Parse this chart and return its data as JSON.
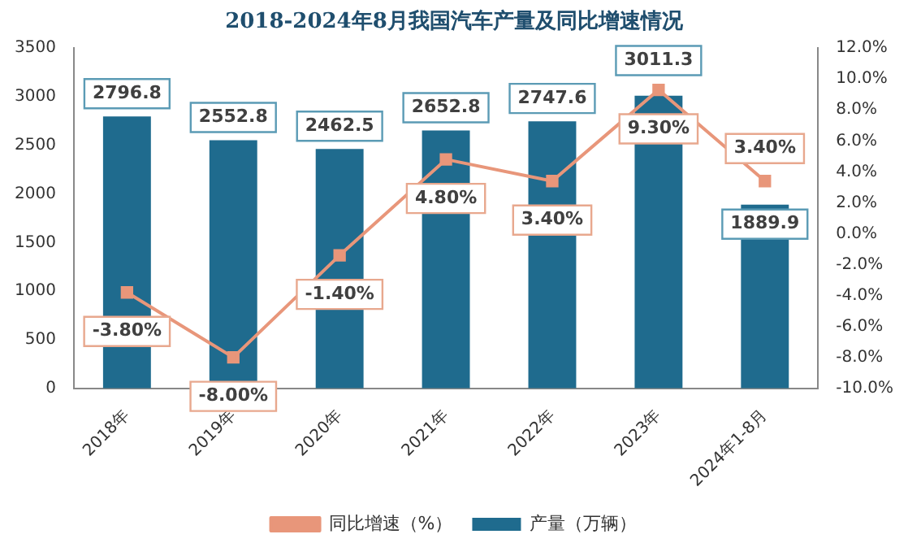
{
  "chart_data": {
    "type": "bar",
    "title": "2018-2024年8月我国汽车产量及同比增速情况",
    "categories": [
      "2018年",
      "2019年",
      "2020年",
      "2021年",
      "2022年",
      "2023年",
      "2024年1-8月"
    ],
    "series": [
      {
        "name": "产量（万辆）",
        "color": "#1f6b8e",
        "values": [
          2796.8,
          2552.8,
          2462.5,
          2652.8,
          2747.6,
          3011.3,
          1889.9
        ],
        "value_labels": [
          "2796.8",
          "2552.8",
          "2462.5",
          "2652.8",
          "2747.6",
          "3011.3",
          "1889.9"
        ]
      },
      {
        "name": "同比增速（%）",
        "type": "line",
        "axis": "y2",
        "color": "#e8967a",
        "marker": "square",
        "values": [
          -3.8,
          -8.0,
          -1.4,
          4.8,
          3.4,
          9.3,
          3.4
        ],
        "value_labels": [
          "-3.80%",
          "-8.00%",
          "-1.40%",
          "4.80%",
          "3.40%",
          "9.30%",
          "3.40%"
        ]
      }
    ],
    "ylim": [
      0,
      3500
    ],
    "yticks": [
      0,
      500,
      1000,
      1500,
      2000,
      2500,
      3000,
      3500
    ],
    "y2lim": [
      -10,
      12
    ],
    "y2ticks": [
      {
        "value": -10,
        "label": "-10.0%"
      },
      {
        "value": -8,
        "label": "-8.0%"
      },
      {
        "value": -6,
        "label": "-6.0%"
      },
      {
        "value": -4,
        "label": "-4.0%"
      },
      {
        "value": -2,
        "label": "-2.0%"
      },
      {
        "value": 0,
        "label": "0.0%"
      },
      {
        "value": 2,
        "label": "2.0%"
      },
      {
        "value": 4,
        "label": "4.0%"
      },
      {
        "value": 6,
        "label": "6.0%"
      },
      {
        "value": 8,
        "label": "8.0%"
      },
      {
        "value": 10,
        "label": "10.0%"
      },
      {
        "value": 12,
        "label": "12.0%"
      }
    ],
    "grid": false,
    "legend": "bottom"
  }
}
